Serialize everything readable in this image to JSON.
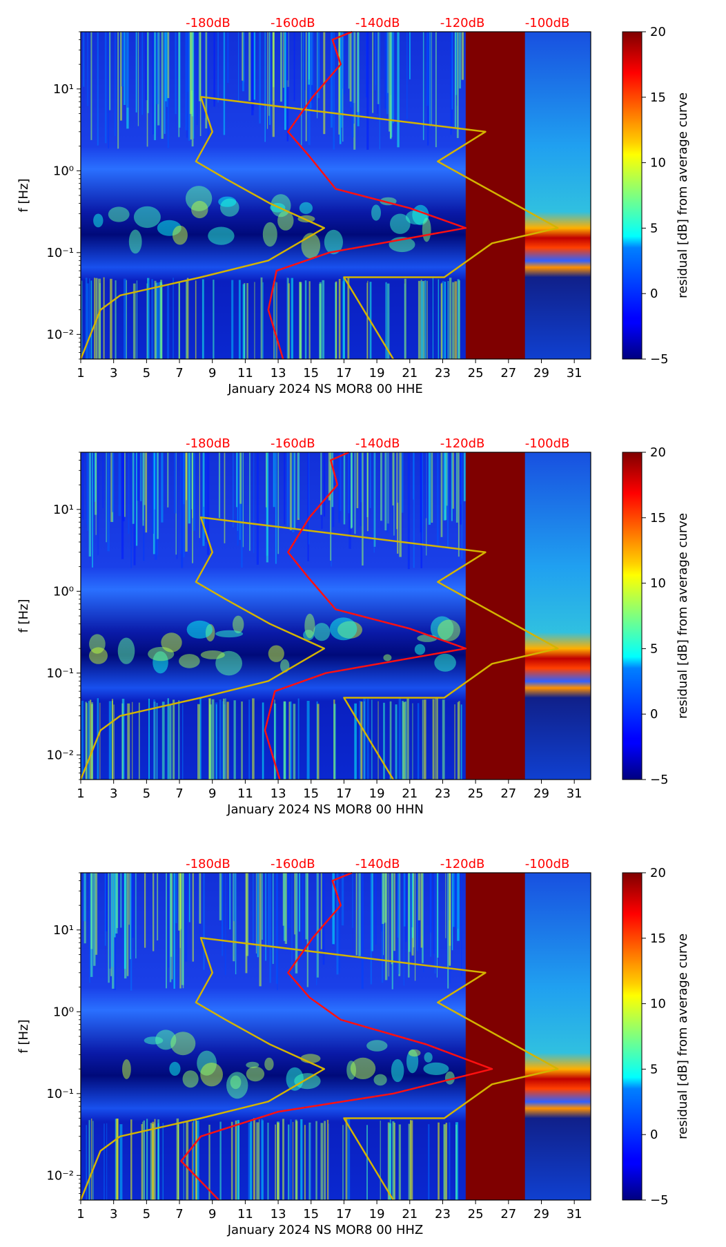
{
  "colors": {
    "model_curve": "#d4b400",
    "psd_curve": "#ff1010",
    "db_label": "#ff0000",
    "saturated": "#7f0000"
  },
  "colorbar": {
    "label": "residual [dB] from average curve",
    "ticks": [
      "20",
      "15",
      "10",
      "5",
      "0",
      "−5"
    ],
    "tick_values": [
      20,
      15,
      10,
      5,
      0,
      -5
    ],
    "range": [
      -5,
      20
    ]
  },
  "db_axis": {
    "labels": [
      "-180dB",
      "-160dB",
      "-140dB",
      "-120dB",
      "-100dB"
    ],
    "values": [
      -180,
      -160,
      -140,
      -120,
      -100
    ]
  },
  "x_axis": {
    "ticks": [
      "1",
      "3",
      "5",
      "7",
      "9",
      "11",
      "13",
      "15",
      "17",
      "19",
      "21",
      "23",
      "25",
      "27",
      "29",
      "31"
    ],
    "range": [
      1,
      32
    ]
  },
  "y_axis": {
    "label": "f [Hz]",
    "ticks": [
      "10¹",
      "10⁰",
      "10⁻¹",
      "10⁻²"
    ],
    "tick_values": [
      10,
      1,
      0.1,
      0.01
    ],
    "range": [
      0.005,
      50
    ]
  },
  "chart_data": [
    {
      "type": "heatmap",
      "title": "January 2024 NS MOR8 00 HHE",
      "xlabel": "January 2024 NS MOR8 00 HHE",
      "ylabel": "f [Hz]",
      "saturated_day_range": [
        24.4,
        28.0
      ],
      "model_curve_days_vs_hz": [
        [
          1,
          0.005
        ],
        [
          1.6,
          0.01
        ],
        [
          2.2,
          0.02
        ],
        [
          3.4,
          0.03
        ],
        [
          8.3,
          0.05
        ],
        [
          12.4,
          0.08
        ],
        [
          15.8,
          0.2
        ],
        [
          12.5,
          0.4
        ],
        [
          9.8,
          0.8
        ],
        [
          8,
          1.3
        ],
        [
          9,
          3
        ],
        [
          8.3,
          8
        ],
        [
          25.6,
          3
        ],
        [
          22.7,
          1.3
        ],
        [
          30,
          0.2
        ],
        [
          26,
          0.13
        ],
        [
          23.1,
          0.05
        ],
        [
          17,
          0.05
        ],
        [
          20,
          0.005
        ]
      ],
      "psd_curve_days_vs_hz": [
        [
          13.3,
          0.005
        ],
        [
          12.4,
          0.02
        ],
        [
          12.9,
          0.06
        ],
        [
          16.1,
          0.1
        ],
        [
          24.4,
          0.2
        ],
        [
          21,
          0.35
        ],
        [
          16.5,
          0.6
        ],
        [
          14.9,
          1.5
        ],
        [
          13.6,
          3
        ],
        [
          15.1,
          8
        ],
        [
          16.8,
          20
        ],
        [
          16.3,
          40
        ],
        [
          17.5,
          50
        ]
      ]
    },
    {
      "type": "heatmap",
      "title": "January 2024 NS MOR8 00 HHN",
      "xlabel": "January 2024 NS MOR8 00 HHN",
      "ylabel": "f [Hz]",
      "saturated_day_range": [
        24.4,
        28.0
      ],
      "model_curve_days_vs_hz": [
        [
          1,
          0.005
        ],
        [
          1.6,
          0.01
        ],
        [
          2.2,
          0.02
        ],
        [
          3.4,
          0.03
        ],
        [
          8.3,
          0.05
        ],
        [
          12.4,
          0.08
        ],
        [
          15.8,
          0.2
        ],
        [
          12.5,
          0.4
        ],
        [
          9.8,
          0.8
        ],
        [
          8,
          1.3
        ],
        [
          9,
          3
        ],
        [
          8.3,
          8
        ],
        [
          25.6,
          3
        ],
        [
          22.7,
          1.3
        ],
        [
          30,
          0.2
        ],
        [
          26,
          0.13
        ],
        [
          23.1,
          0.05
        ],
        [
          17,
          0.05
        ],
        [
          20,
          0.005
        ]
      ],
      "psd_curve_days_vs_hz": [
        [
          13.1,
          0.005
        ],
        [
          12.2,
          0.02
        ],
        [
          12.8,
          0.06
        ],
        [
          15.9,
          0.1
        ],
        [
          24.4,
          0.2
        ],
        [
          21,
          0.35
        ],
        [
          16.5,
          0.6
        ],
        [
          14.8,
          1.5
        ],
        [
          13.6,
          3
        ],
        [
          14.9,
          8
        ],
        [
          16.6,
          20
        ],
        [
          16.2,
          40
        ],
        [
          17.3,
          50
        ]
      ]
    },
    {
      "type": "heatmap",
      "title": "January 2024 NS MOR8 00 HHZ",
      "xlabel": "January 2024 NS MOR8 00 HHZ",
      "ylabel": "f [Hz]",
      "saturated_day_range": [
        24.4,
        28.0
      ],
      "model_curve_days_vs_hz": [
        [
          1,
          0.005
        ],
        [
          1.6,
          0.01
        ],
        [
          2.2,
          0.02
        ],
        [
          3.4,
          0.03
        ],
        [
          8.3,
          0.05
        ],
        [
          12.4,
          0.08
        ],
        [
          15.8,
          0.2
        ],
        [
          12.5,
          0.4
        ],
        [
          9.8,
          0.8
        ],
        [
          8,
          1.3
        ],
        [
          9,
          3
        ],
        [
          8.3,
          8
        ],
        [
          25.6,
          3
        ],
        [
          22.7,
          1.3
        ],
        [
          30,
          0.2
        ],
        [
          26,
          0.13
        ],
        [
          23.1,
          0.05
        ],
        [
          17,
          0.05
        ],
        [
          20,
          0.005
        ]
      ],
      "psd_curve_days_vs_hz": [
        [
          9.4,
          0.005
        ],
        [
          7.1,
          0.015
        ],
        [
          8.3,
          0.03
        ],
        [
          13,
          0.06
        ],
        [
          20,
          0.1
        ],
        [
          26,
          0.2
        ],
        [
          22,
          0.4
        ],
        [
          16.8,
          0.8
        ],
        [
          14.9,
          1.5
        ],
        [
          13.6,
          3
        ],
        [
          15.1,
          8
        ],
        [
          16.8,
          20
        ],
        [
          16.3,
          40
        ],
        [
          17.5,
          50
        ]
      ]
    }
  ]
}
